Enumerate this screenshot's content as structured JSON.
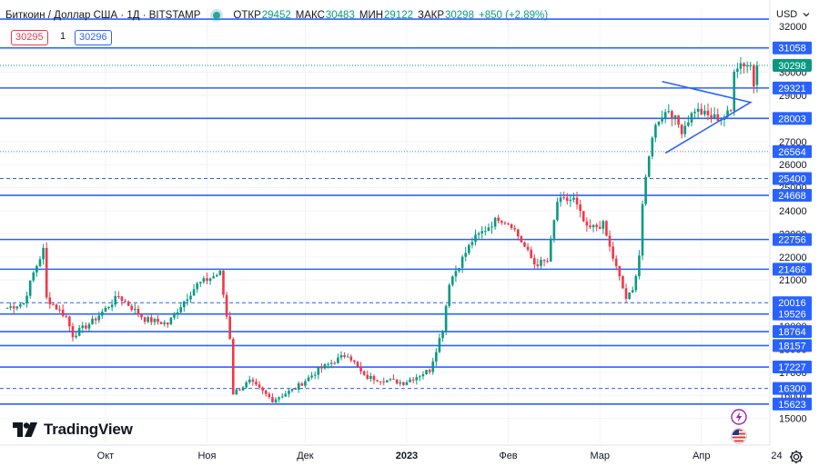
{
  "header": {
    "title": "Биткоин / Доллар США · 1Д · BITSTAMP",
    "open_label": "ОТКР",
    "open_value": "29452",
    "high_label": "МАКС",
    "high_value": "30483",
    "low_label": "МИН",
    "low_value": "29122",
    "close_label": "ЗАКР",
    "close_value": "30298",
    "change": "+850 (+2.89%)",
    "bid": "30295",
    "qty": "1",
    "ask": "30296",
    "currency": "USD"
  },
  "branding": {
    "name": "TradingView"
  },
  "icons": {
    "settings": "gear-icon",
    "alert": "lightning-icon",
    "flag": "us-flag-icon",
    "currency_menu": "chevron-down-icon",
    "logo": "tradingview-logo"
  },
  "colors": {
    "up": "#089981",
    "down": "#f23645",
    "line": "#2962ff",
    "grid": "#f0f3fa",
    "text": "#131722"
  },
  "chart_data": {
    "type": "candlestick",
    "y_ticks": [
      15000,
      16000,
      17000,
      18000,
      19000,
      20000,
      21000,
      22000,
      23000,
      24000,
      25000,
      26000,
      27000,
      28000,
      29000,
      30000,
      31000,
      32000
    ],
    "x_ticks": [
      "Окт",
      "Ноя",
      "Дек",
      "2023",
      "Фев",
      "Мар",
      "Апр",
      "24"
    ],
    "current_price": 30298,
    "levels": [
      {
        "value": 32306,
        "style": "solid"
      },
      {
        "value": 31058,
        "style": "solid"
      },
      {
        "value": 29321,
        "style": "solid"
      },
      {
        "value": 28003,
        "style": "solid"
      },
      {
        "value": 26564,
        "style": "dotted"
      },
      {
        "value": 25400,
        "style": "dashed"
      },
      {
        "value": 24668,
        "style": "solid"
      },
      {
        "value": 22756,
        "style": "solid"
      },
      {
        "value": 21466,
        "style": "solid"
      },
      {
        "value": 20016,
        "style": "dashed"
      },
      {
        "value": 19526,
        "style": "solid"
      },
      {
        "value": 18764,
        "style": "solid"
      },
      {
        "value": 18157,
        "style": "solid"
      },
      {
        "value": 17227,
        "style": "solid"
      },
      {
        "value": 16300,
        "style": "dashed"
      },
      {
        "value": 15623,
        "style": "solid"
      }
    ],
    "triangle": [
      {
        "date": "2023-03-20",
        "price": 29600
      },
      {
        "date": "2023-04-16",
        "price": 28700
      },
      {
        "date": "2023-03-21",
        "price": 26500
      }
    ],
    "price_anchors": [
      [
        "2022-09-01",
        19800
      ],
      [
        "2022-09-06",
        20000
      ],
      [
        "2022-09-09",
        21300
      ],
      [
        "2022-09-12",
        22300
      ],
      [
        "2022-09-13",
        20200
      ],
      [
        "2022-09-19",
        19400
      ],
      [
        "2022-09-21",
        18600
      ],
      [
        "2022-09-27",
        19200
      ],
      [
        "2022-10-05",
        20300
      ],
      [
        "2022-10-13",
        19300
      ],
      [
        "2022-10-20",
        19100
      ],
      [
        "2022-10-25",
        20100
      ],
      [
        "2022-10-29",
        20800
      ],
      [
        "2022-11-05",
        21300
      ],
      [
        "2022-11-08",
        18500
      ],
      [
        "2022-11-09",
        16100
      ],
      [
        "2022-11-14",
        16600
      ],
      [
        "2022-11-21",
        15800
      ],
      [
        "2022-11-28",
        16300
      ],
      [
        "2022-12-05",
        17100
      ],
      [
        "2022-12-14",
        17800
      ],
      [
        "2022-12-19",
        16800
      ],
      [
        "2022-12-31",
        16550
      ],
      [
        "2023-01-08",
        17100
      ],
      [
        "2023-01-12",
        18900
      ],
      [
        "2023-01-14",
        20900
      ],
      [
        "2023-01-21",
        22700
      ],
      [
        "2023-01-29",
        23700
      ],
      [
        "2023-02-02",
        23400
      ],
      [
        "2023-02-09",
        21700
      ],
      [
        "2023-02-13",
        21800
      ],
      [
        "2023-02-16",
        24400
      ],
      [
        "2023-02-21",
        24500
      ],
      [
        "2023-02-25",
        23200
      ],
      [
        "2023-03-02",
        23400
      ],
      [
        "2023-03-04",
        22400
      ],
      [
        "2023-03-09",
        20200
      ],
      [
        "2023-03-11",
        20500
      ],
      [
        "2023-03-13",
        22100
      ],
      [
        "2023-03-14",
        24300
      ],
      [
        "2023-03-17",
        27300
      ],
      [
        "2023-03-19",
        28000
      ],
      [
        "2023-03-22",
        28400
      ],
      [
        "2023-03-26",
        27500
      ],
      [
        "2023-03-30",
        28400
      ],
      [
        "2023-04-03",
        28100
      ],
      [
        "2023-04-07",
        28000
      ],
      [
        "2023-04-10",
        28300
      ],
      [
        "2023-04-11",
        30200
      ],
      [
        "2023-04-13",
        30400
      ],
      [
        "2023-04-16",
        30300
      ],
      [
        "2023-04-17",
        29450
      ],
      [
        "2023-04-18",
        30298
      ]
    ]
  }
}
